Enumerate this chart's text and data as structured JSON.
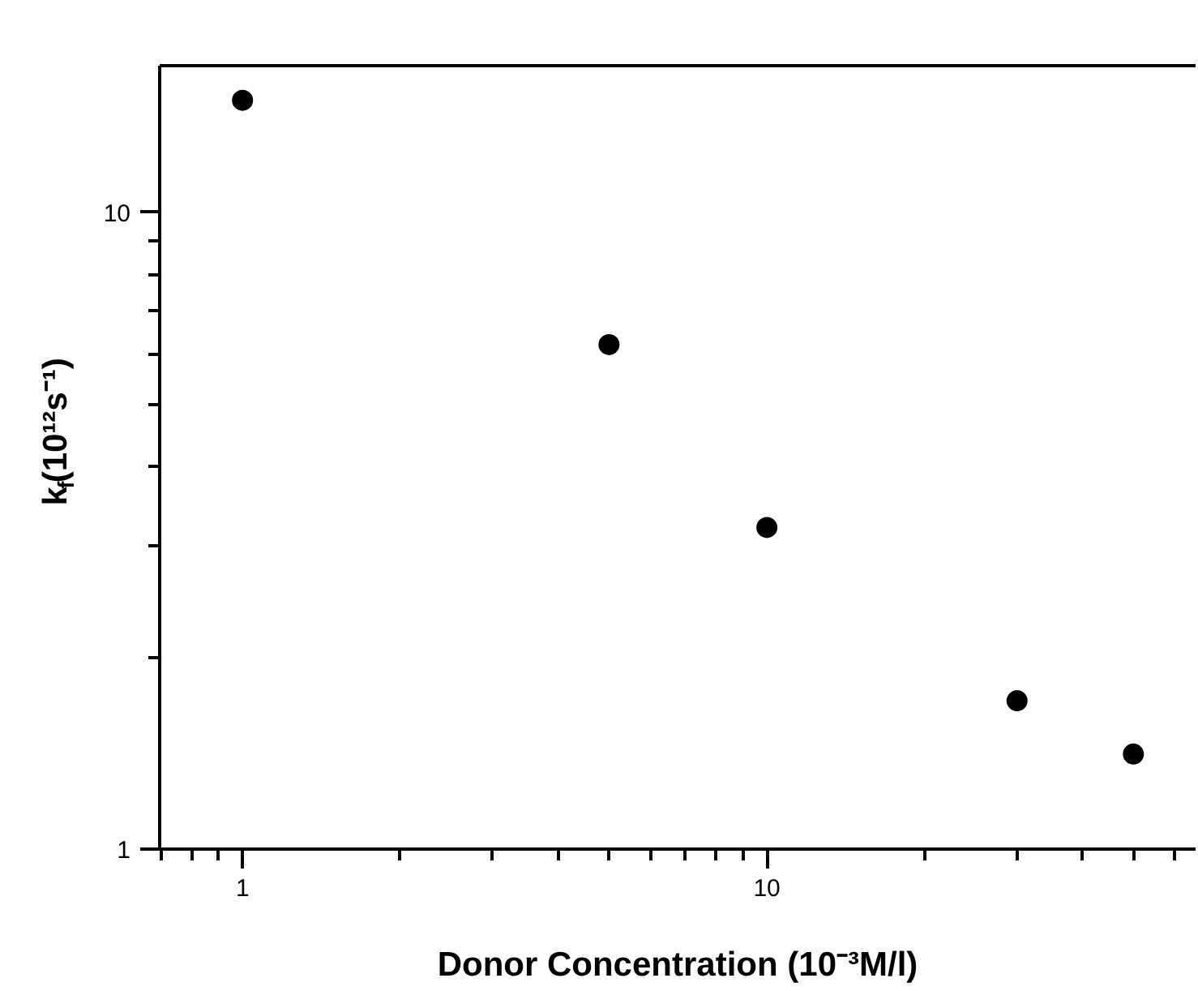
{
  "chart_data": {
    "type": "scatter",
    "xlabel": "Donor Concentration (10⁻³M/l)",
    "ylabel": "k$_{f}$(10¹²s⁻¹)",
    "log": "xy",
    "marker": "circle",
    "grid": false,
    "x": [
      1,
      5,
      10,
      30,
      50
    ],
    "series": [
      {
        "color": "#000000",
        "values": [
          15.0,
          6.2,
          3.2,
          1.71,
          1.41
        ]
      }
    ],
    "xlim": [
      0.695,
      65.7
    ],
    "ylim": [
      1,
      17
    ],
    "xticks": [
      {
        "value": 0.7,
        "label": null
      },
      {
        "value": 0.8,
        "label": null
      },
      {
        "value": 0.9,
        "label": null
      },
      1,
      {
        "value": 2,
        "label": null
      },
      {
        "value": 3,
        "label": null
      },
      {
        "value": 4,
        "label": null
      },
      {
        "value": 5,
        "label": null
      },
      {
        "value": 6,
        "label": null
      },
      {
        "value": 7,
        "label": null
      },
      {
        "value": 8,
        "label": null
      },
      {
        "value": 9,
        "label": null
      },
      10,
      {
        "value": 20,
        "label": null
      },
      {
        "value": 30,
        "label": null
      },
      {
        "value": 40,
        "label": null
      },
      {
        "value": 50,
        "label": null
      },
      {
        "value": 60,
        "label": null
      }
    ],
    "yticks": [
      1,
      {
        "value": 2,
        "label": null
      },
      {
        "value": 3,
        "label": null
      },
      {
        "value": 4,
        "label": null
      },
      {
        "value": 5,
        "label": null
      },
      {
        "value": 6,
        "label": null
      },
      {
        "value": 7,
        "label": null
      },
      {
        "value": 8,
        "label": null
      },
      {
        "value": 9,
        "label": null
      },
      10
    ]
  }
}
